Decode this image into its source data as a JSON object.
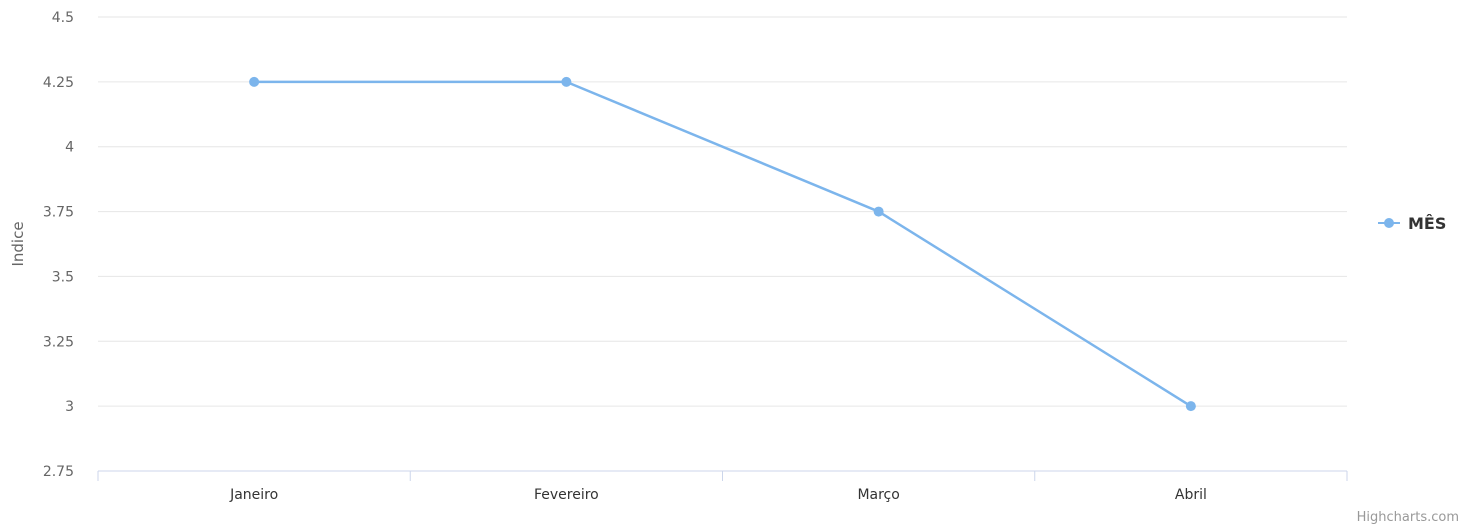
{
  "chart_data": {
    "type": "line",
    "categories": [
      "Janeiro",
      "Fevereiro",
      "Março",
      "Abril"
    ],
    "series": [
      {
        "name": "MÊS",
        "values": [
          4.25,
          4.25,
          3.75,
          3.0
        ],
        "color": "#7cb5ec"
      }
    ],
    "ylabel": "Indice",
    "xlabel": "",
    "title": "",
    "ylim": [
      2.75,
      4.5
    ],
    "yticks": [
      "2.75",
      "3",
      "3.25",
      "3.5",
      "3.75",
      "4",
      "4.25",
      "4.5"
    ],
    "grid": true,
    "legend_position": "right",
    "colors": {
      "grid": "#e6e6e6",
      "axis": "#ccd6eb",
      "line": "#7cb5ec"
    }
  },
  "credits": "Highcharts.com"
}
